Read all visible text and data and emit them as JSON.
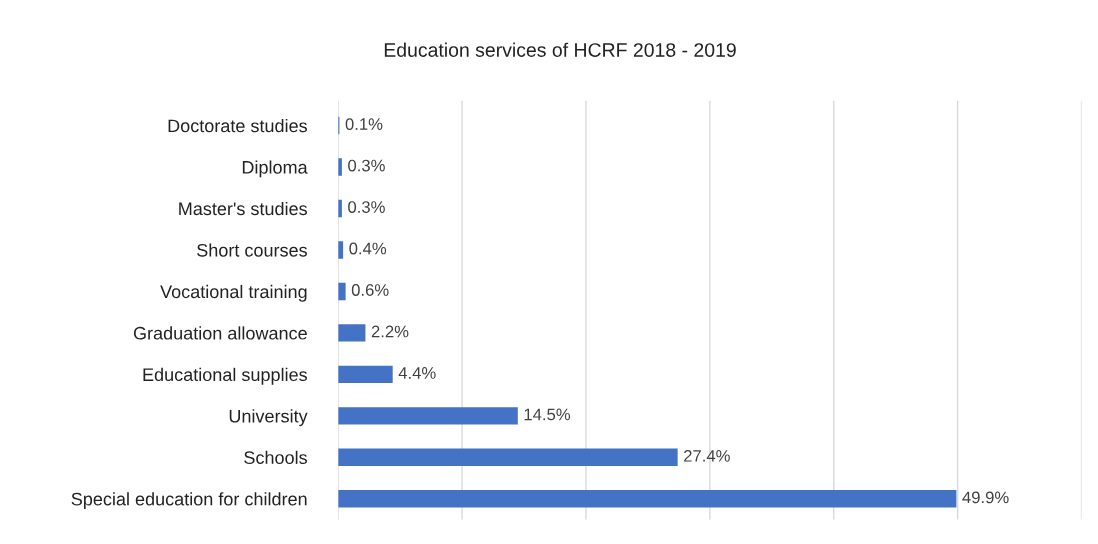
{
  "chart_data": {
    "type": "bar",
    "orientation": "horizontal",
    "title": "Education services of HCRF 2018 - 2019",
    "categories": [
      "Doctorate studies",
      "Diploma",
      "Master's studies",
      "Short courses",
      "Vocational training",
      "Graduation allowance",
      "Educational supplies",
      "University",
      "Schools",
      "Special education for children"
    ],
    "values": [
      0.1,
      0.3,
      0.3,
      0.4,
      0.6,
      2.2,
      4.4,
      14.5,
      27.4,
      49.9
    ],
    "value_labels": [
      "0.1%",
      "0.3%",
      "0.3%",
      "0.4%",
      "0.6%",
      "2.2%",
      "4.4%",
      "14.5%",
      "27.4%",
      "49.9%"
    ],
    "color": "#4472c4",
    "xlim": [
      0,
      60
    ],
    "xticks": [
      {
        "value": 0,
        "label": null
      },
      {
        "value": 10,
        "label": null
      },
      {
        "value": 20,
        "label": null
      },
      {
        "value": 30,
        "label": null
      },
      {
        "value": 40,
        "label": null
      },
      {
        "value": 50,
        "label": null
      },
      {
        "value": 60,
        "label": null
      }
    ],
    "tick_labels": "y",
    "grid": "x",
    "legend": false
  }
}
